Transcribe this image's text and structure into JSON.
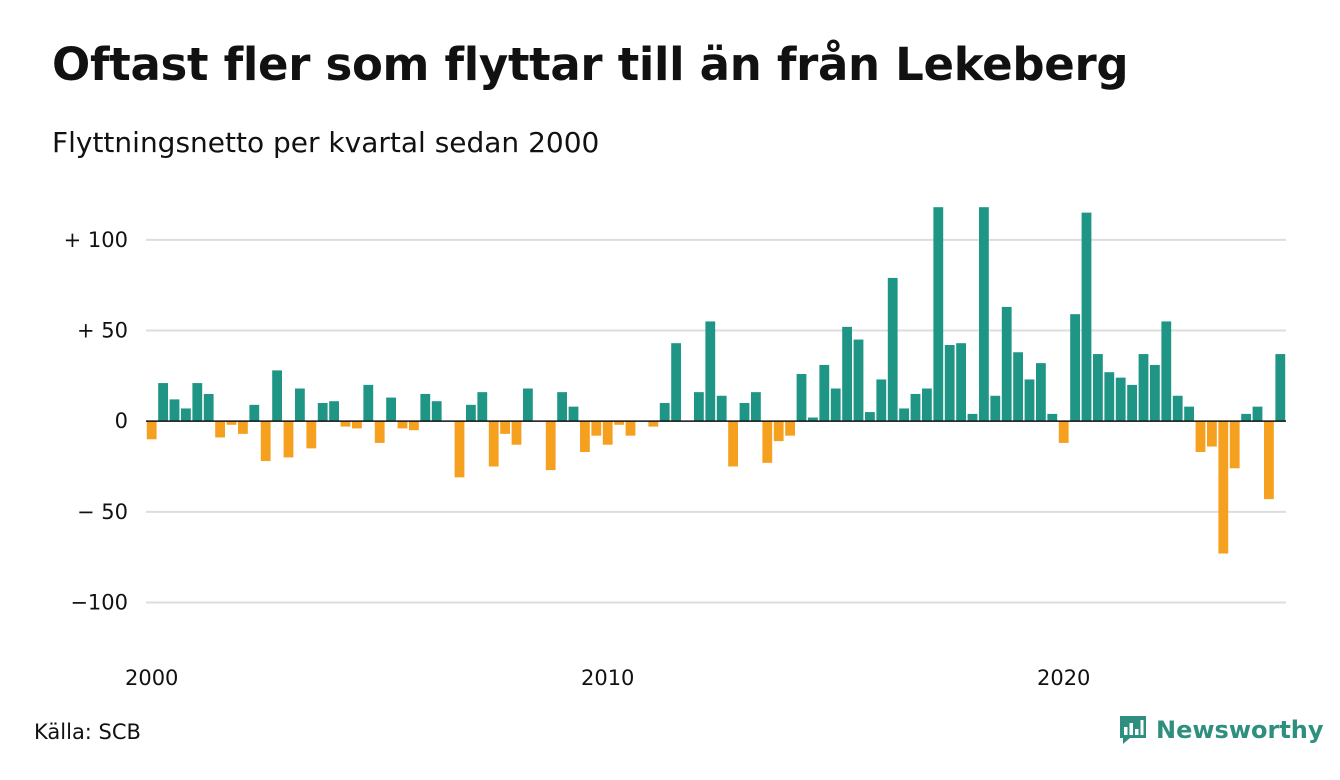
{
  "title": "Oftast fler som flyttar till än från Lekeberg",
  "subtitle": "Flyttningsnetto per kvartal sedan 2000",
  "source": "Källa: SCB",
  "brand": "Newsworthy",
  "colors": {
    "positive": "#1f9585",
    "negative": "#f5a01e",
    "grid": "#dddddd",
    "brand": "#2f8f7f"
  },
  "icons": {
    "brand_logo": "bar-chart-speech-bubble-icon"
  },
  "chart_data": {
    "type": "bar",
    "xlabel": "",
    "ylabel": "",
    "ylim": [
      -124,
      117
    ],
    "grid": "horizontal",
    "y_ticks": [
      {
        "value": 100,
        "label": "+ 100"
      },
      {
        "value": 50,
        "label": "+  50"
      },
      {
        "value": 0,
        "label": "0"
      },
      {
        "value": -50,
        "label": "− 50"
      },
      {
        "value": -100,
        "label": "−100"
      }
    ],
    "x_ticks": [
      {
        "year": 2000,
        "label": "2000"
      },
      {
        "year": 2010,
        "label": "2010"
      },
      {
        "year": 2020,
        "label": "2020"
      }
    ],
    "start_year": 2000,
    "quarters_per_year": 4,
    "values": [
      -10,
      21,
      12,
      7,
      21,
      15,
      -9,
      -2,
      -7,
      9,
      -22,
      28,
      -20,
      18,
      -15,
      10,
      11,
      -3,
      -4,
      20,
      -12,
      13,
      -4,
      -5,
      15,
      11,
      0,
      -31,
      9,
      16,
      -25,
      -7,
      -13,
      18,
      0,
      -27,
      16,
      8,
      -17,
      -8,
      -13,
      -2,
      -8,
      0,
      -3,
      10,
      43,
      0,
      16,
      55,
      14,
      -25,
      10,
      16,
      -23,
      -11,
      -8,
      26,
      2,
      31,
      18,
      52,
      45,
      5,
      23,
      79,
      7,
      15,
      18,
      118,
      42,
      43,
      4,
      118,
      14,
      63,
      38,
      23,
      32,
      4,
      -12,
      59,
      115,
      37,
      27,
      24,
      20,
      37,
      31,
      55,
      14,
      8,
      -17,
      -14,
      -73,
      -26,
      4,
      8,
      -43,
      37
    ]
  }
}
